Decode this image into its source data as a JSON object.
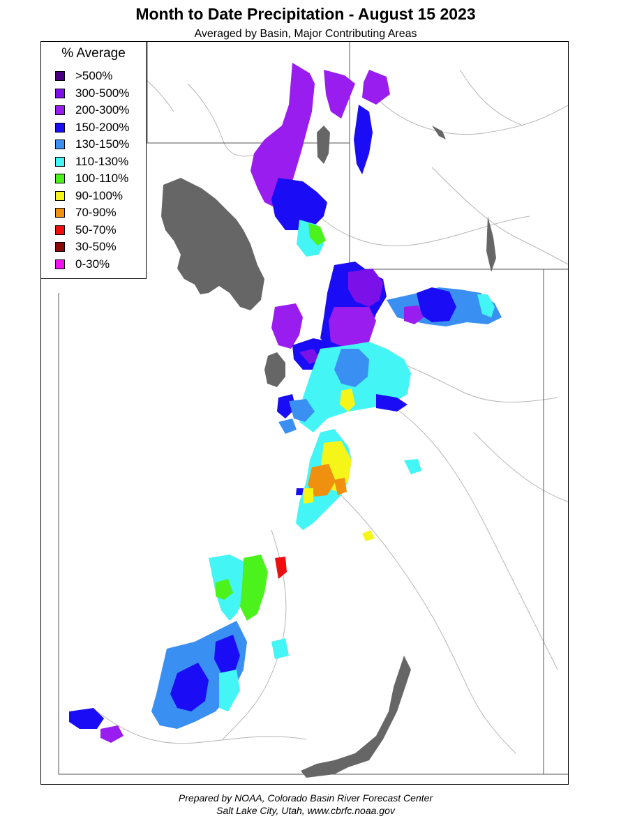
{
  "title": "Month to Date Precipitation - August 15 2023",
  "subtitle": "Averaged by Basin, Major Contributing Areas",
  "legend": {
    "title": "% Average",
    "items": [
      {
        "label": ">500%",
        "color": "#4b0082"
      },
      {
        "label": "300-500%",
        "color": "#7b11e8"
      },
      {
        "label": "200-300%",
        "color": "#9a1df0"
      },
      {
        "label": "150-200%",
        "color": "#1a0df5"
      },
      {
        "label": "130-150%",
        "color": "#3a8ff2"
      },
      {
        "label": "110-130%",
        "color": "#44f5f5"
      },
      {
        "label": "100-110%",
        "color": "#4cf21c"
      },
      {
        "label": "90-100%",
        "color": "#f5f51a"
      },
      {
        "label": "70-90%",
        "color": "#f0900f"
      },
      {
        "label": "50-70%",
        "color": "#f00d0d"
      },
      {
        "label": "30-50%",
        "color": "#8b0a0a"
      },
      {
        "label": "0-30%",
        "color": "#f012f0"
      }
    ]
  },
  "map": {
    "water_color": "#666666",
    "boundary_color": "#555555",
    "river_color": "#aaaaaa"
  },
  "footer": {
    "line1": "Prepared by NOAA, Colorado Basin River Forecast Center",
    "line2": "Salt Lake City, Utah, www.cbrfc.noaa.gov"
  }
}
